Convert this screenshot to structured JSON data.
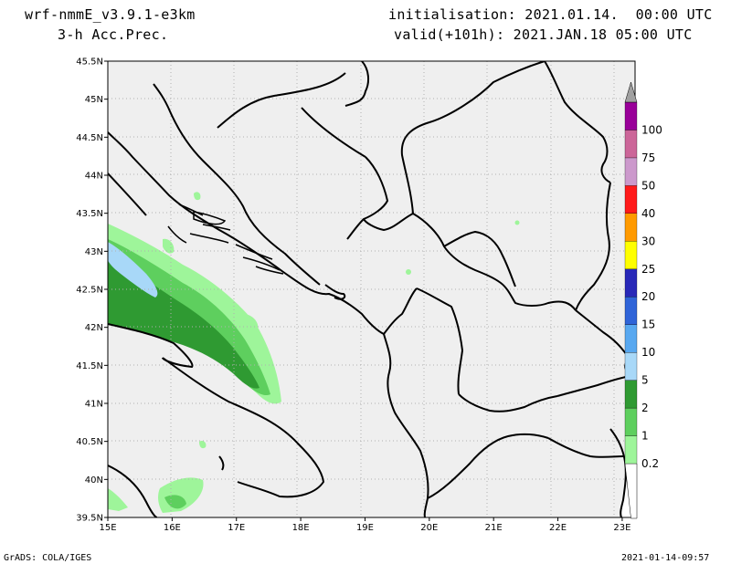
{
  "header": {
    "model": "wrf-nmmE_v3.9.1-e3km",
    "field": "3-h Acc.Prec.",
    "init": "initialisation: 2021.01.14.  00:00 UTC",
    "valid": "valid(+101h): 2021.JAN.18 05:00 UTC"
  },
  "footer": {
    "credit": "GrADS: COLA/IGES",
    "timestamp": "2021-01-14-09:57"
  },
  "map": {
    "lat_ticks": [
      "45.5N",
      "45N",
      "44.5N",
      "44N",
      "43.5N",
      "43N",
      "42.5N",
      "42N",
      "41.5N",
      "41N",
      "40.5N",
      "40N",
      "39.5N"
    ],
    "lon_ticks": [
      "15E",
      "16E",
      "17E",
      "18E",
      "19E",
      "20E",
      "21E",
      "22E",
      "23E"
    ],
    "lat_range": [
      39.5,
      45.5
    ],
    "lon_range": [
      15,
      23.2
    ],
    "grid": true,
    "land_color": "#efefef"
  },
  "colorbar": {
    "levels": [
      {
        "label": "0.2",
        "color": "#9ef59a"
      },
      {
        "label": "1",
        "color": "#5ecf5e"
      },
      {
        "label": "2",
        "color": "#2f9a32"
      },
      {
        "label": "5",
        "color": "#a8d8f8"
      },
      {
        "label": "10",
        "color": "#58a8f0"
      },
      {
        "label": "15",
        "color": "#2f64d8"
      },
      {
        "label": "20",
        "color": "#2828b8"
      },
      {
        "label": "25",
        "color": "#ffff00"
      },
      {
        "label": "30",
        "color": "#ff9a00"
      },
      {
        "label": "40",
        "color": "#ff1a1a"
      },
      {
        "label": "50",
        "color": "#cc99cc"
      },
      {
        "label": "75",
        "color": "#cc6699"
      },
      {
        "label": "100",
        "color": "#990099"
      }
    ],
    "top_color": "#a0a0a0"
  }
}
